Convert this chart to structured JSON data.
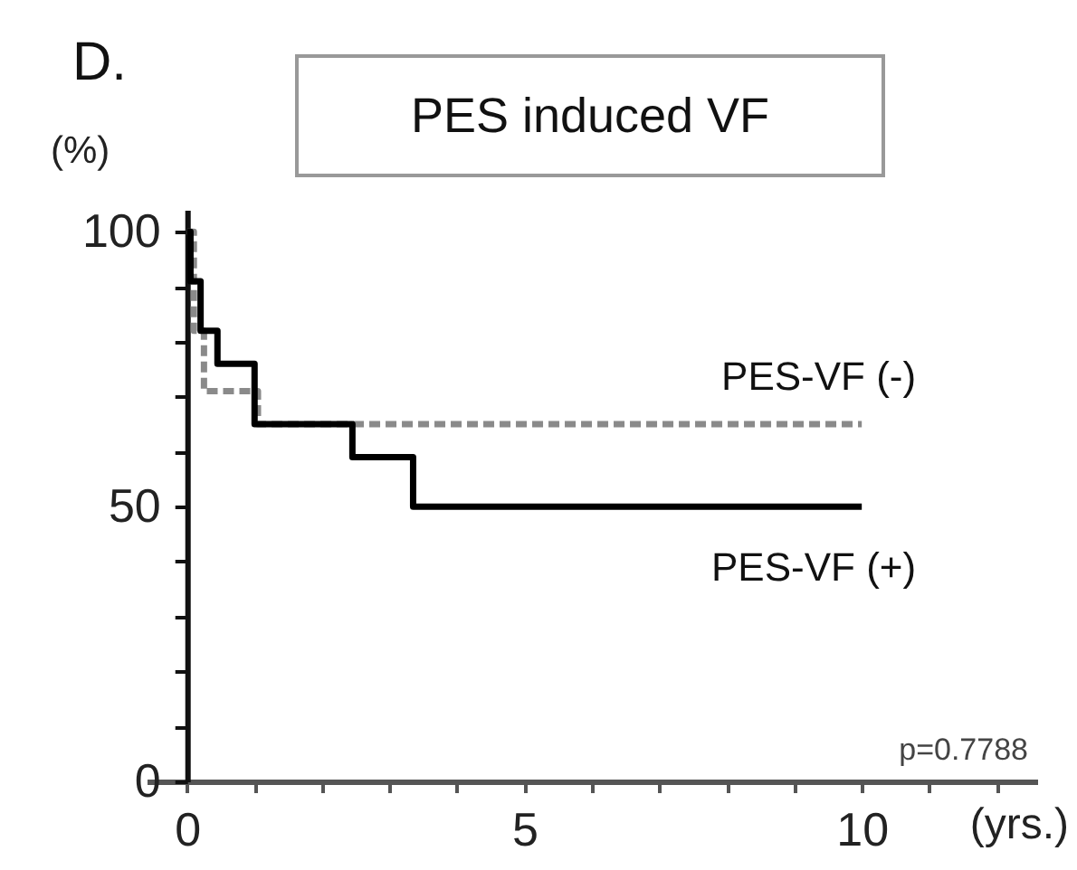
{
  "chart_data": {
    "type": "step",
    "title": "PES induced VF",
    "xlabel": "(yrs.)",
    "ylabel": "(%)",
    "annotations": [
      "D.",
      "p=0.7788"
    ],
    "xlim": [
      -0.6,
      12.6
    ],
    "ylim": [
      0,
      104
    ],
    "xticks": [
      {
        "value": 0,
        "label": "0"
      },
      {
        "value": 1,
        "label": null
      },
      {
        "value": 2,
        "label": null
      },
      {
        "value": 3,
        "label": null
      },
      {
        "value": 4,
        "label": null
      },
      {
        "value": 5,
        "label": "5"
      },
      {
        "value": 6,
        "label": null
      },
      {
        "value": 7,
        "label": null
      },
      {
        "value": 8,
        "label": null
      },
      {
        "value": 9,
        "label": null
      },
      {
        "value": 10,
        "label": "10"
      },
      {
        "value": 11,
        "label": null
      },
      {
        "value": 12,
        "label": null
      }
    ],
    "yticks": [
      {
        "value": 0,
        "label": "0"
      },
      {
        "value": 10,
        "label": null
      },
      {
        "value": 20,
        "label": null
      },
      {
        "value": 30,
        "label": null
      },
      {
        "value": 40,
        "label": null
      },
      {
        "value": 50,
        "label": "50"
      },
      {
        "value": 60,
        "label": null
      },
      {
        "value": 70,
        "label": null
      },
      {
        "value": 80,
        "label": null
      },
      {
        "value": 90,
        "label": null
      },
      {
        "value": 100,
        "label": "100"
      }
    ],
    "grid": false,
    "series": [
      {
        "name": "PES-VF (-)",
        "color": "#8a8a8a",
        "line_style": "dashed",
        "x": [
          0,
          0.1,
          0.25,
          1.05,
          10
        ],
        "values": [
          100,
          82,
          71,
          65,
          65
        ]
      },
      {
        "name": "PES-VF (+)",
        "color": "#000000",
        "line_style": "solid",
        "x": [
          0,
          0.05,
          0.2,
          0.45,
          1.0,
          2.45,
          3.35,
          10
        ],
        "values": [
          100,
          91,
          82,
          76,
          65,
          59,
          50,
          50
        ]
      }
    ]
  }
}
